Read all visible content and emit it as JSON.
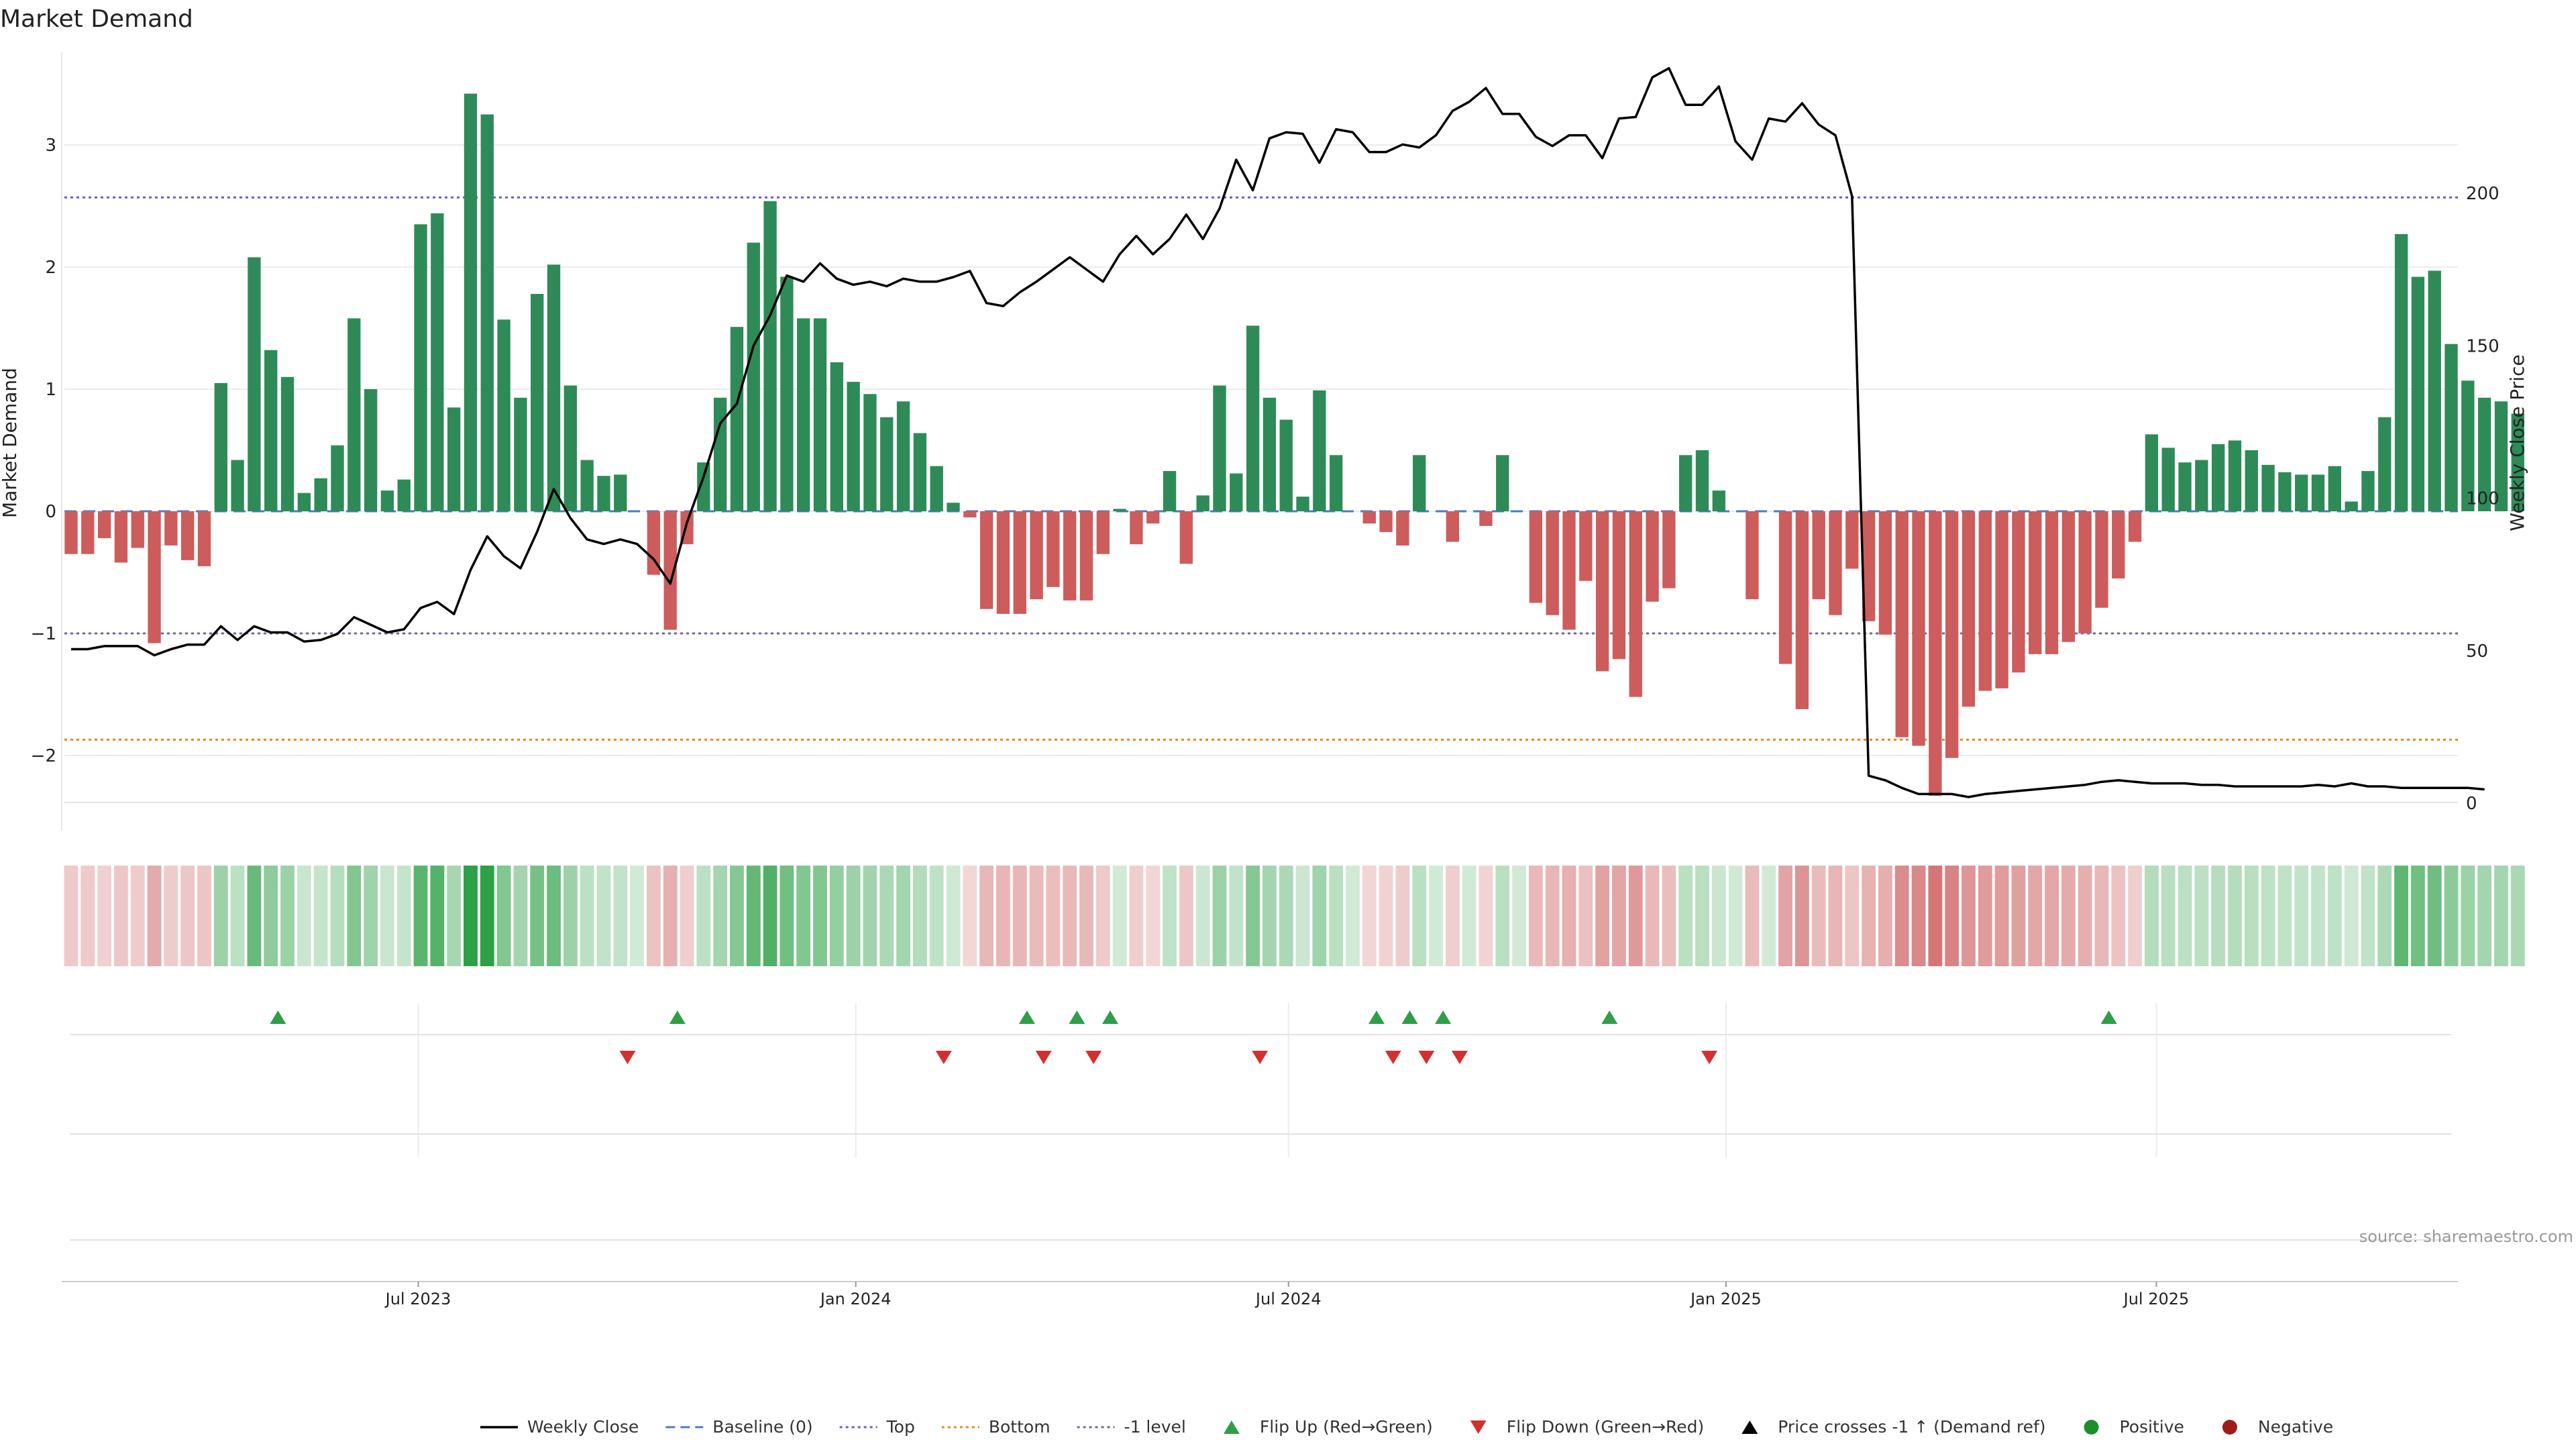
{
  "title": "Market Demand",
  "source": "source: sharemaestro.com",
  "legend": [
    {
      "label": "Weekly Close",
      "kind": "line",
      "color": "#000000"
    },
    {
      "label": "Baseline (0)",
      "kind": "dash",
      "color": "#4a7dbf"
    },
    {
      "label": "Top",
      "kind": "dot",
      "color": "#6a5acd"
    },
    {
      "label": "Bottom",
      "kind": "dot",
      "color": "#e08a1e"
    },
    {
      "label": "-1 level",
      "kind": "dot",
      "color": "#6b6b9b"
    },
    {
      "label": "Flip Up (Red→Green)",
      "kind": "tri-up",
      "color": "#2e9e48"
    },
    {
      "label": "Flip Down (Green→Red)",
      "kind": "tri-down",
      "color": "#d32f2f"
    },
    {
      "label": "Price crosses -1 ↑ (Demand ref)",
      "kind": "tri-up",
      "color": "#000000"
    },
    {
      "label": "Positive",
      "kind": "dot-marker",
      "color": "#1e8e28"
    },
    {
      "label": "Negative",
      "kind": "dot-marker",
      "color": "#a01a1a"
    }
  ],
  "colors": {
    "positive_bar": "#2e8b57",
    "negative_bar": "#cd5c5c",
    "price_line": "#000000",
    "top_line": "#6a5acd",
    "bottom_line": "#e08a1e",
    "minus1_line": "#6b6b9b",
    "baseline": "#4a7dbf",
    "flip_up": "#2e9e48",
    "flip_down": "#d32f2f"
  },
  "chart_data": {
    "type": "bar",
    "ylabel": "Market Demand",
    "y2label": "Weekly Close Price",
    "ylim": [
      -2.4,
      3.75
    ],
    "y2lim": [
      -5,
      250
    ],
    "yticks": [
      3,
      2,
      1,
      0,
      -1,
      -2
    ],
    "yticklabels": [
      "3",
      "2",
      "1",
      "0",
      "−1",
      "−2"
    ],
    "y2ticks": [
      200,
      150,
      100,
      50,
      0
    ],
    "x_start": "2023-02-05",
    "x_end": "2025-11-02",
    "x_step_days": 7,
    "xticks": [
      {
        "date": "2023-07-01",
        "label": "Jul 2023"
      },
      {
        "date": "2024-01-01",
        "label": "Jan 2024"
      },
      {
        "date": "2024-07-01",
        "label": "Jul 2024"
      },
      {
        "date": "2025-01-01",
        "label": "Jan 2025"
      },
      {
        "date": "2025-07-01",
        "label": "Jul 2025"
      }
    ],
    "levels": {
      "top": 2.57,
      "bottom": -1.87,
      "minus_one": -1.0,
      "baseline": 0
    },
    "demand": [
      -0.35,
      -0.35,
      -0.22,
      -0.42,
      -0.3,
      -1.08,
      -0.28,
      -0.4,
      -0.45,
      1.05,
      0.42,
      2.08,
      1.32,
      1.1,
      0.15,
      0.27,
      0.54,
      1.58,
      1.0,
      0.17,
      0.26,
      2.35,
      2.44,
      0.85,
      3.42,
      3.25,
      1.57,
      0.93,
      1.78,
      2.02,
      1.03,
      0.42,
      0.29,
      0.3,
      0.0,
      -0.52,
      -0.97,
      -0.27,
      0.4,
      0.93,
      1.51,
      2.2,
      2.54,
      1.92,
      1.58,
      1.58,
      1.22,
      1.06,
      0.96,
      0.77,
      0.9,
      0.64,
      0.37,
      0.07,
      -0.05,
      -0.8,
      -0.84,
      -0.84,
      -0.72,
      -0.62,
      -0.73,
      -0.73,
      -0.35,
      0.02,
      -0.27,
      -0.1,
      0.33,
      -0.43,
      0.13,
      1.03,
      0.31,
      1.52,
      0.93,
      0.75,
      0.12,
      0.99,
      0.46,
      0.0,
      -0.1,
      -0.17,
      -0.28,
      0.46,
      0.0,
      -0.25,
      0.0,
      -0.12,
      0.46,
      0.0,
      -0.75,
      -0.85,
      -0.97,
      -0.57,
      -1.31,
      -1.21,
      -1.52,
      -0.74,
      -0.63,
      0.46,
      0.5,
      0.17,
      0.0,
      -0.72,
      0.0,
      -1.25,
      -1.62,
      -0.72,
      -0.85,
      -0.47,
      -0.9,
      -1.01,
      -1.85,
      -1.92,
      -2.33,
      -2.02,
      -1.6,
      -1.47,
      -1.45,
      -1.32,
      -1.17,
      -1.17,
      -1.07,
      -1.0,
      -0.79,
      -0.55,
      -0.25,
      0.63,
      0.52,
      0.4,
      0.42,
      0.55,
      0.58,
      0.5,
      0.38,
      0.32,
      0.3,
      0.3,
      0.37,
      0.08,
      0.33,
      0.77,
      2.27,
      1.92,
      1.97,
      1.37,
      1.07,
      0.93,
      0.9,
      0.8
    ],
    "price": [
      50.5,
      50.5,
      51.5,
      51.5,
      51.5,
      48.5,
      50.5,
      52.0,
      52.0,
      58.0,
      53.5,
      58.0,
      56.0,
      56.0,
      53.0,
      53.5,
      55.5,
      61.0,
      58.5,
      56.0,
      57.0,
      64.0,
      66.0,
      62.0,
      76.5,
      87.5,
      81.0,
      77.0,
      89.0,
      103.0,
      93.5,
      86.5,
      85.0,
      86.5,
      85.0,
      80.0,
      72.0,
      92.0,
      107.0,
      124.5,
      131.0,
      150.0,
      160.0,
      173.0,
      171.0,
      177.0,
      172.0,
      170.0,
      171.0,
      169.5,
      172.0,
      171.0,
      171.0,
      172.5,
      174.5,
      164.0,
      163.0,
      167.5,
      171.0,
      175.0,
      179.0,
      175.0,
      171.0,
      180.0,
      186.0,
      180.0,
      185.0,
      193.0,
      185.0,
      195.0,
      211.0,
      201.0,
      218.0,
      220.0,
      219.5,
      210.0,
      221.0,
      220.0,
      213.5,
      213.5,
      216.0,
      215.0,
      219.0,
      227.0,
      230.0,
      234.5,
      226.0,
      226.0,
      218.5,
      215.5,
      219.0,
      219.0,
      211.5,
      224.5,
      225.0,
      238.0,
      241.0,
      229.0,
      229.0,
      235.0,
      217.0,
      211.0,
      224.5,
      223.5,
      229.5,
      222.5,
      219.0,
      199.0,
      9.0,
      7.5,
      5.0,
      3.0,
      3.0,
      3.0,
      2.0,
      3.0,
      3.5,
      4.0,
      4.5,
      5.0,
      5.5,
      6.0,
      7.0,
      7.5,
      7.0,
      6.5,
      6.5,
      6.5,
      6.0,
      6.0,
      5.5,
      5.5,
      5.5,
      5.5,
      5.5,
      6.0,
      5.5,
      6.5,
      5.5,
      5.5,
      5.0,
      5.0,
      5.0,
      5.0,
      5.0,
      4.5
    ],
    "flip_up_dates": [
      "2023-05-03",
      "2023-10-18",
      "2024-03-13",
      "2024-04-03",
      "2024-04-17",
      "2024-08-07",
      "2024-08-21",
      "2024-09-04",
      "2024-11-13",
      "2025-06-11"
    ],
    "flip_down_dates": [
      "2023-09-27",
      "2024-02-07",
      "2024-03-20",
      "2024-04-10",
      "2024-06-19",
      "2024-08-14",
      "2024-08-28",
      "2024-09-11",
      "2024-12-25"
    ],
    "positive_points": [],
    "negative_points": [],
    "price_cross_points": []
  }
}
